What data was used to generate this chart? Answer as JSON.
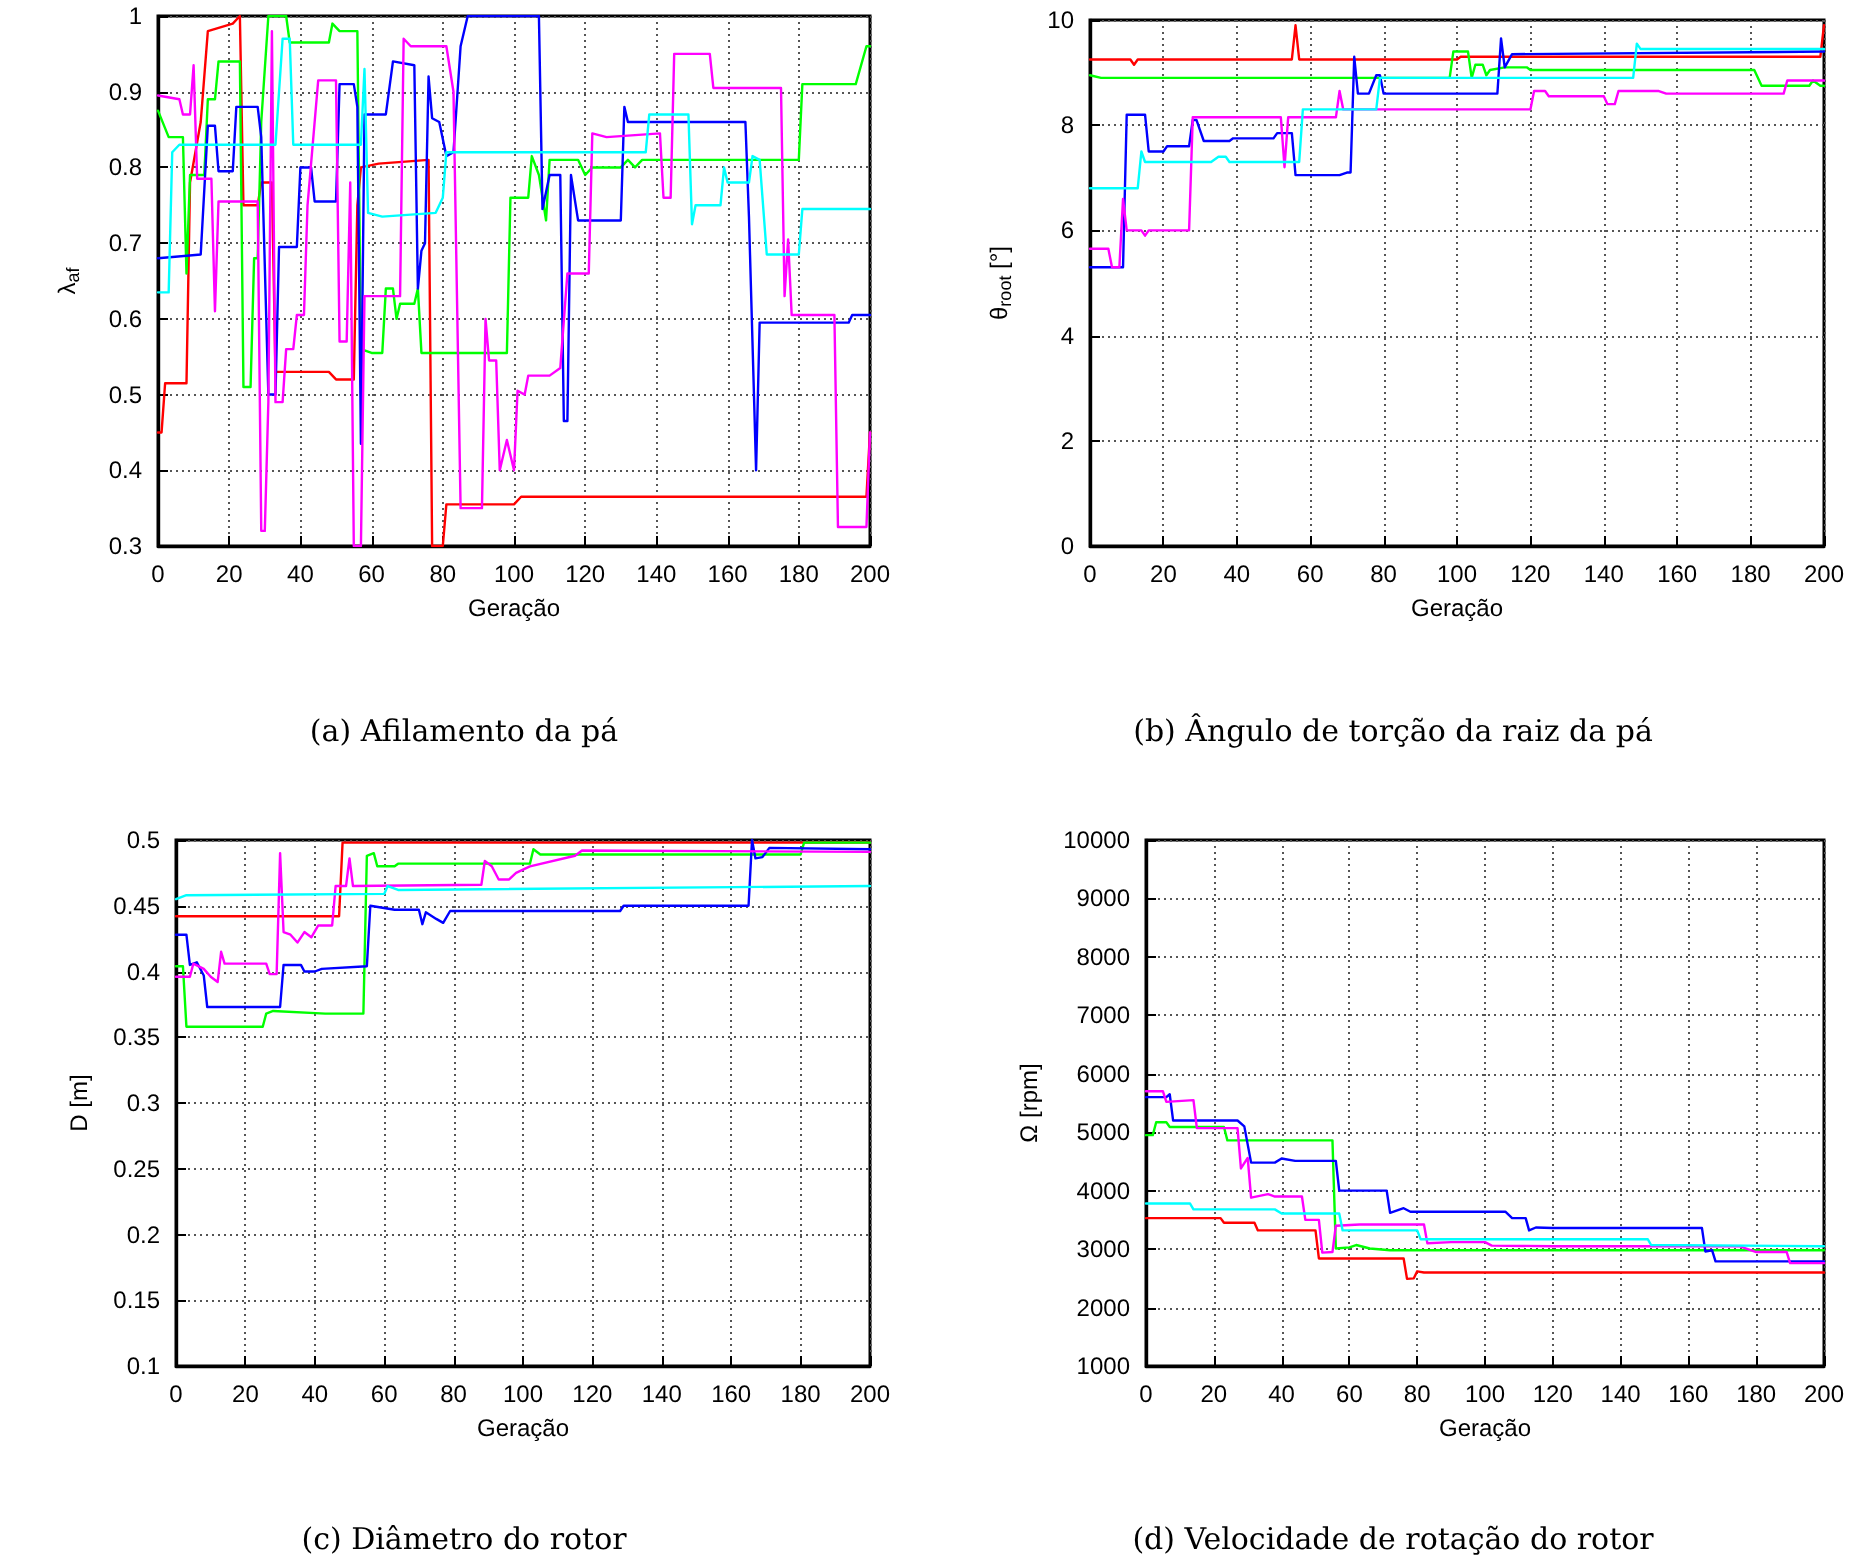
{
  "chart_data": [
    {
      "type": "line",
      "title": "(a) Afilamento da pá",
      "xlabel": "Geração",
      "ylabel": "λ$_{af}$",
      "xlim": [
        0,
        200
      ],
      "xticks": [
        0,
        20,
        40,
        60,
        80,
        100,
        120,
        140,
        160,
        180,
        200
      ],
      "ylim": [
        0.3,
        1
      ],
      "yticks": [
        0.3,
        0.4,
        0.5,
        0.6,
        0.7,
        0.8,
        0.9,
        1
      ],
      "grid": true,
      "marker": "none",
      "line_style": "solid",
      "series": [
        {
          "color": "#ff0000",
          "x": [
            0,
            1,
            2,
            8,
            9,
            12,
            14,
            21,
            23,
            24,
            28,
            29,
            32,
            33,
            48,
            50,
            55,
            56,
            57,
            62,
            76,
            77,
            80,
            81,
            100,
            102,
            199,
            200
          ],
          "values": [
            0.45,
            0.45,
            0.515,
            0.515,
            0.78,
            0.86,
            0.98,
            0.99,
            1.0,
            0.75,
            0.75,
            0.78,
            0.78,
            0.53,
            0.53,
            0.52,
            0.52,
            0.75,
            0.8,
            0.805,
            0.81,
            0.3,
            0.3,
            0.355,
            0.355,
            0.365,
            0.365,
            0.45
          ]
        },
        {
          "color": "#00ff00",
          "x": [
            0,
            3,
            7,
            8,
            9,
            13,
            14,
            16,
            17,
            23,
            24,
            26,
            27,
            28,
            29,
            31,
            36,
            37,
            48,
            49,
            51,
            56,
            57,
            60,
            63,
            64,
            66,
            67,
            68,
            72,
            73,
            74,
            98,
            99,
            104,
            105,
            107,
            109,
            110,
            118,
            120,
            122,
            130,
            132,
            134,
            136,
            180,
            181,
            196,
            199,
            200
          ],
          "values": [
            0.875,
            0.84,
            0.84,
            0.66,
            0.79,
            0.79,
            0.89,
            0.89,
            0.94,
            0.94,
            0.51,
            0.51,
            0.68,
            0.68,
            0.86,
            1.0,
            1.0,
            0.965,
            0.965,
            0.99,
            0.98,
            0.98,
            0.56,
            0.555,
            0.555,
            0.64,
            0.64,
            0.6,
            0.62,
            0.62,
            0.64,
            0.555,
            0.555,
            0.76,
            0.76,
            0.815,
            0.79,
            0.73,
            0.81,
            0.81,
            0.79,
            0.8,
            0.8,
            0.81,
            0.8,
            0.81,
            0.81,
            0.91,
            0.91,
            0.96,
            0.96
          ]
        },
        {
          "color": "#0000ff",
          "x": [
            0,
            12,
            13,
            14,
            16,
            17,
            21,
            22,
            28,
            29,
            31,
            33,
            34,
            39,
            40,
            43,
            44,
            50,
            51,
            55,
            56,
            57,
            58,
            64,
            66,
            72,
            73,
            74,
            75,
            76,
            77,
            79,
            81,
            83,
            85,
            87,
            107,
            108,
            110,
            113,
            114,
            115,
            116,
            118,
            130,
            131,
            132,
            165,
            166,
            168,
            169,
            194,
            195,
            200
          ],
          "values": [
            0.68,
            0.685,
            0.77,
            0.855,
            0.855,
            0.795,
            0.795,
            0.88,
            0.88,
            0.84,
            0.5,
            0.5,
            0.695,
            0.695,
            0.8,
            0.8,
            0.755,
            0.755,
            0.91,
            0.91,
            0.88,
            0.435,
            0.87,
            0.87,
            0.94,
            0.935,
            0.64,
            0.69,
            0.7,
            0.92,
            0.865,
            0.86,
            0.815,
            0.82,
            0.96,
            1.0,
            1.0,
            0.745,
            0.79,
            0.79,
            0.465,
            0.465,
            0.79,
            0.73,
            0.73,
            0.88,
            0.86,
            0.86,
            0.735,
            0.4,
            0.595,
            0.595,
            0.605,
            0.605
          ]
        },
        {
          "color": "#ff00ff",
          "x": [
            0,
            6,
            7,
            9,
            10,
            11,
            15,
            16,
            17,
            28,
            29,
            30,
            31,
            32,
            33,
            35,
            36,
            38,
            39,
            41,
            42,
            45,
            50,
            51,
            53,
            54,
            55,
            57,
            58,
            68,
            69,
            71,
            81,
            83,
            85,
            91,
            92,
            93,
            95,
            96,
            98,
            100,
            101,
            103,
            104,
            110,
            113,
            115,
            121,
            122,
            126,
            141,
            142,
            144,
            145,
            155,
            156,
            175,
            176,
            177,
            178,
            190,
            191,
            199,
            200
          ],
          "values": [
            0.895,
            0.89,
            0.87,
            0.87,
            0.935,
            0.785,
            0.785,
            0.61,
            0.755,
            0.755,
            0.32,
            0.32,
            0.49,
            0.98,
            0.49,
            0.49,
            0.56,
            0.56,
            0.605,
            0.605,
            0.75,
            0.915,
            0.915,
            0.57,
            0.57,
            0.78,
            0.3,
            0.3,
            0.63,
            0.63,
            0.97,
            0.96,
            0.96,
            0.9,
            0.35,
            0.35,
            0.6,
            0.545,
            0.545,
            0.4,
            0.44,
            0.4,
            0.505,
            0.5,
            0.525,
            0.525,
            0.535,
            0.66,
            0.66,
            0.845,
            0.84,
            0.845,
            0.76,
            0.76,
            0.95,
            0.95,
            0.905,
            0.905,
            0.63,
            0.705,
            0.605,
            0.605,
            0.325,
            0.325,
            0.45
          ]
        },
        {
          "color": "#00ffff",
          "x": [
            0,
            3,
            4,
            6,
            33,
            35,
            37,
            38,
            57,
            58,
            59,
            63,
            78,
            80,
            81,
            137,
            138,
            149,
            150,
            151,
            158,
            159,
            160,
            166,
            167,
            169,
            171,
            180,
            181,
            200
          ],
          "values": [
            0.635,
            0.635,
            0.82,
            0.83,
            0.83,
            0.97,
            0.97,
            0.83,
            0.83,
            0.93,
            0.74,
            0.735,
            0.74,
            0.76,
            0.82,
            0.82,
            0.87,
            0.87,
            0.725,
            0.75,
            0.75,
            0.8,
            0.78,
            0.78,
            0.815,
            0.81,
            0.685,
            0.685,
            0.745,
            0.745
          ]
        }
      ]
    },
    {
      "type": "line",
      "title": "(b) Ângulo de torção da raiz da pá",
      "xlabel": "Geração",
      "ylabel": "θ$_{root}$ [°]",
      "xlim": [
        0,
        200
      ],
      "xticks": [
        0,
        20,
        40,
        60,
        80,
        100,
        120,
        140,
        160,
        180,
        200
      ],
      "ylim": [
        0,
        10
      ],
      "yticks": [
        0,
        2,
        4,
        6,
        8,
        10
      ],
      "grid": true,
      "marker": "none",
      "line_style": "solid",
      "series": [
        {
          "color": "#ff0000",
          "x": [
            0,
            11,
            12,
            13,
            55,
            56,
            57,
            100,
            101,
            199,
            200
          ],
          "values": [
            9.25,
            9.25,
            9.15,
            9.25,
            9.25,
            9.9,
            9.25,
            9.25,
            9.3,
            9.3,
            9.9
          ]
        },
        {
          "color": "#00ff00",
          "x": [
            0,
            3,
            98,
            99,
            103,
            104,
            105,
            107,
            108,
            109,
            113,
            119,
            120,
            181,
            183,
            196,
            197,
            199,
            200
          ],
          "values": [
            8.95,
            8.9,
            8.9,
            9.4,
            9.4,
            8.9,
            9.15,
            9.15,
            8.95,
            9.05,
            9.1,
            9.1,
            9.05,
            9.05,
            8.75,
            8.75,
            8.85,
            8.75,
            8.75
          ]
        },
        {
          "color": "#0000ff",
          "x": [
            0,
            9,
            10,
            15,
            16,
            20,
            21,
            27,
            28,
            29,
            31,
            38,
            39,
            50,
            51,
            55,
            56,
            68,
            70,
            71,
            72,
            73,
            76,
            78,
            79,
            80,
            111,
            112,
            113,
            115,
            200
          ],
          "values": [
            5.3,
            5.3,
            8.2,
            8.2,
            7.5,
            7.5,
            7.6,
            7.6,
            8.1,
            8.1,
            7.7,
            7.7,
            7.75,
            7.75,
            7.85,
            7.85,
            7.05,
            7.05,
            7.1,
            7.1,
            9.3,
            8.6,
            8.6,
            8.95,
            8.95,
            8.6,
            8.6,
            9.65,
            9.1,
            9.35,
            9.4
          ]
        },
        {
          "color": "#ff00ff",
          "x": [
            0,
            5,
            6,
            8,
            9,
            10,
            14,
            15,
            16,
            27,
            28,
            31,
            52,
            53,
            54,
            67,
            68,
            69,
            120,
            121,
            124,
            125,
            140,
            141,
            143,
            144,
            155,
            157,
            189,
            190,
            200
          ],
          "values": [
            5.65,
            5.65,
            5.3,
            5.3,
            6.6,
            6.0,
            6.0,
            5.9,
            6.0,
            6.0,
            8.15,
            8.15,
            8.15,
            7.2,
            8.15,
            8.15,
            8.65,
            8.3,
            8.3,
            8.65,
            8.65,
            8.55,
            8.55,
            8.4,
            8.4,
            8.65,
            8.65,
            8.6,
            8.6,
            8.85,
            8.85
          ]
        },
        {
          "color": "#00ffff",
          "x": [
            0,
            13,
            14,
            15,
            33,
            35,
            37,
            38,
            57,
            58,
            78,
            79,
            148,
            149,
            150,
            200
          ],
          "values": [
            6.8,
            6.8,
            7.5,
            7.3,
            7.3,
            7.4,
            7.4,
            7.3,
            7.3,
            8.3,
            8.3,
            8.9,
            8.9,
            9.55,
            9.45,
            9.45
          ]
        }
      ]
    },
    {
      "type": "line",
      "title": "(c) Diâmetro do rotor",
      "xlabel": "Geração",
      "ylabel": "D [m]",
      "xlim": [
        0,
        200
      ],
      "xticks": [
        0,
        20,
        40,
        60,
        80,
        100,
        120,
        140,
        160,
        180,
        200
      ],
      "ylim": [
        0.1,
        0.5
      ],
      "yticks": [
        0.1,
        0.15,
        0.2,
        0.25,
        0.3,
        0.35,
        0.4,
        0.45,
        0.5
      ],
      "grid": true,
      "marker": "none",
      "line_style": "solid",
      "series": [
        {
          "color": "#ff0000",
          "x": [
            0,
            47,
            48,
            200
          ],
          "values": [
            0.442,
            0.442,
            0.498,
            0.498
          ]
        },
        {
          "color": "#00ff00",
          "x": [
            0,
            2,
            3,
            25,
            26,
            28,
            43,
            54,
            55,
            57,
            58,
            63,
            64,
            102,
            103,
            105,
            180,
            181,
            200
          ],
          "values": [
            0.404,
            0.404,
            0.358,
            0.358,
            0.368,
            0.37,
            0.368,
            0.368,
            0.488,
            0.49,
            0.48,
            0.48,
            0.482,
            0.482,
            0.493,
            0.489,
            0.489,
            0.498,
            0.498
          ]
        },
        {
          "color": "#0000ff",
          "x": [
            0,
            3,
            4,
            6,
            8,
            9,
            30,
            31,
            36,
            37,
            40,
            42,
            55,
            56,
            63,
            70,
            71,
            72,
            75,
            77,
            79,
            128,
            129,
            165,
            166,
            167,
            169,
            171,
            200
          ],
          "values": [
            0.428,
            0.428,
            0.405,
            0.407,
            0.397,
            0.373,
            0.373,
            0.405,
            0.405,
            0.4,
            0.4,
            0.402,
            0.404,
            0.45,
            0.447,
            0.447,
            0.436,
            0.445,
            0.44,
            0.437,
            0.446,
            0.446,
            0.45,
            0.45,
            0.5,
            0.486,
            0.487,
            0.494,
            0.493
          ]
        },
        {
          "color": "#ff00ff",
          "x": [
            0,
            4,
            5,
            8,
            10,
            12,
            13,
            14,
            26,
            27,
            29,
            30,
            31,
            33,
            35,
            37,
            39,
            41,
            45,
            46,
            49,
            50,
            51,
            88,
            89,
            91,
            93,
            96,
            98,
            102,
            115,
            117,
            200
          ],
          "values": [
            0.396,
            0.396,
            0.406,
            0.402,
            0.396,
            0.392,
            0.415,
            0.406,
            0.406,
            0.398,
            0.398,
            0.49,
            0.43,
            0.428,
            0.422,
            0.43,
            0.426,
            0.435,
            0.435,
            0.465,
            0.465,
            0.486,
            0.465,
            0.466,
            0.484,
            0.48,
            0.47,
            0.47,
            0.475,
            0.48,
            0.488,
            0.492,
            0.491
          ]
        },
        {
          "color": "#00ffff",
          "x": [
            0,
            3,
            60,
            61,
            64,
            200
          ],
          "values": [
            0.455,
            0.458,
            0.459,
            0.465,
            0.462,
            0.465
          ]
        }
      ]
    },
    {
      "type": "line",
      "title": "(d) Velocidade de rotação do rotor",
      "xlabel": "Geração",
      "ylabel": "Ω [rpm]",
      "xlim": [
        0,
        200
      ],
      "xticks": [
        0,
        20,
        40,
        60,
        80,
        100,
        120,
        140,
        160,
        180,
        200
      ],
      "ylim": [
        1000,
        10000
      ],
      "yticks": [
        1000,
        2000,
        3000,
        4000,
        5000,
        6000,
        7000,
        8000,
        9000,
        10000
      ],
      "grid": true,
      "marker": "none",
      "line_style": "solid",
      "series": [
        {
          "color": "#ff0000",
          "x": [
            0,
            22,
            23,
            32,
            33,
            50,
            51,
            76,
            77,
            79,
            80,
            82,
            200
          ],
          "values": [
            3530,
            3530,
            3450,
            3450,
            3320,
            3320,
            2840,
            2840,
            2490,
            2500,
            2620,
            2600,
            2600
          ]
        },
        {
          "color": "#00ff00",
          "x": [
            0,
            2,
            3,
            6,
            7,
            23,
            24,
            55,
            56,
            60,
            62,
            66,
            72,
            200
          ],
          "values": [
            4950,
            4950,
            5170,
            5170,
            5090,
            5090,
            4860,
            4860,
            3010,
            3030,
            3070,
            3010,
            2980,
            2980
          ]
        },
        {
          "color": "#0000ff",
          "x": [
            0,
            6,
            7,
            8,
            27,
            29,
            31,
            38,
            40,
            44,
            56,
            57,
            71,
            72,
            76,
            78,
            106,
            108,
            112,
            113,
            115,
            120,
            164,
            165,
            167,
            168,
            200
          ],
          "values": [
            5600,
            5600,
            5650,
            5200,
            5200,
            5100,
            4480,
            4480,
            4550,
            4510,
            4510,
            4000,
            4000,
            3620,
            3700,
            3640,
            3640,
            3530,
            3530,
            3320,
            3370,
            3360,
            3360,
            2960,
            2980,
            2790,
            2790
          ]
        },
        {
          "color": "#ff00ff",
          "x": [
            0,
            5,
            6,
            14,
            15,
            27,
            28,
            30,
            31,
            36,
            38,
            46,
            47,
            51,
            52,
            55,
            56,
            63,
            82,
            83,
            90,
            100,
            102,
            120,
            175,
            180,
            189,
            190,
            200
          ],
          "values": [
            5700,
            5700,
            5520,
            5550,
            5070,
            5070,
            4380,
            4560,
            3880,
            3940,
            3900,
            3900,
            3500,
            3500,
            2940,
            2950,
            3400,
            3420,
            3420,
            3100,
            3120,
            3120,
            3060,
            3050,
            3050,
            2950,
            2950,
            2760,
            2760
          ]
        },
        {
          "color": "#00ffff",
          "x": [
            0,
            13,
            14,
            38,
            40,
            57,
            58,
            80,
            81,
            148,
            149,
            200
          ],
          "values": [
            3780,
            3780,
            3680,
            3680,
            3610,
            3610,
            3320,
            3320,
            3170,
            3170,
            3070,
            3050
          ]
        }
      ]
    }
  ]
}
